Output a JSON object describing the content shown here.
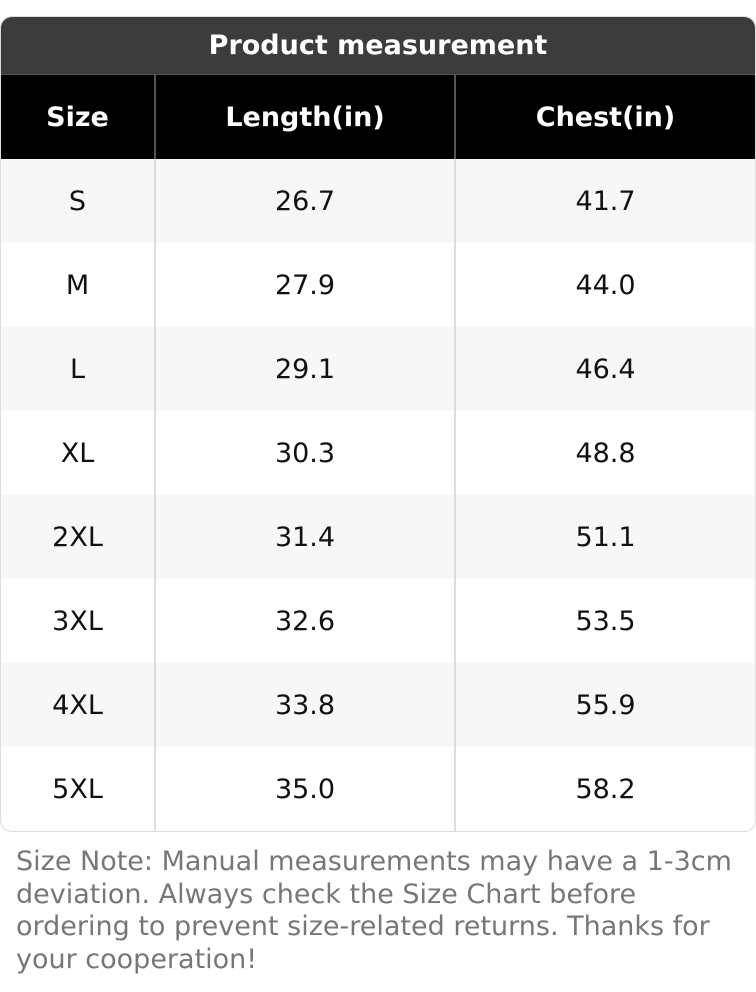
{
  "table": {
    "title": "Product measurement",
    "columns": [
      "Size",
      "Length(in)",
      "Chest(in)"
    ],
    "rows": [
      [
        "S",
        "26.7",
        "41.7"
      ],
      [
        "M",
        "27.9",
        "44.0"
      ],
      [
        "L",
        "29.1",
        "46.4"
      ],
      [
        "XL",
        "30.3",
        "48.8"
      ],
      [
        "2XL",
        "31.4",
        "51.1"
      ],
      [
        "3XL",
        "32.6",
        "53.5"
      ],
      [
        "4XL",
        "33.8",
        "55.9"
      ],
      [
        "5XL",
        "35.0",
        "58.2"
      ]
    ]
  },
  "note": "Size Note: Manual measurements may have a 1-3cm deviation. Always check the Size Chart before ordering to prevent size-related returns. Thanks for your cooperation!"
}
